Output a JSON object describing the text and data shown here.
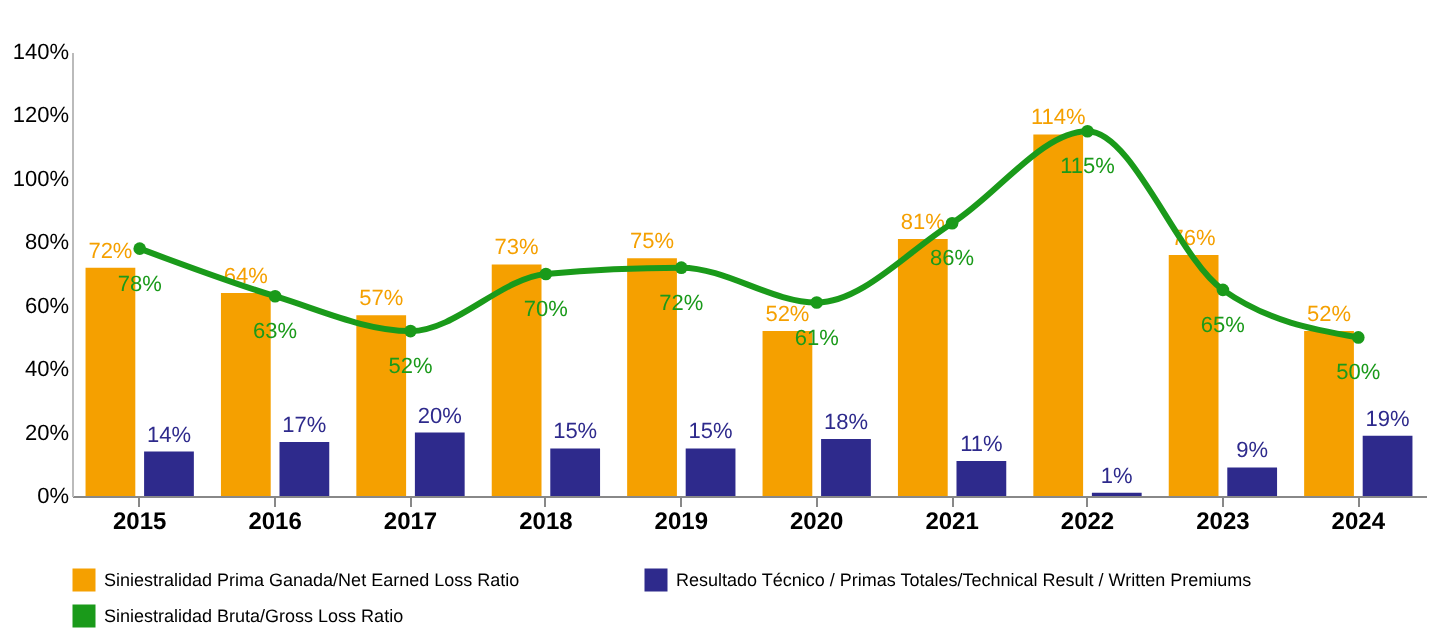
{
  "chart_data": {
    "type": "bar",
    "categories": [
      "2015",
      "2016",
      "2017",
      "2018",
      "2019",
      "2020",
      "2021",
      "2022",
      "2023",
      "2024"
    ],
    "series": [
      {
        "name": "Siniestralidad Prima Ganada/Net Earned Loss Ratio",
        "color": "#f5a000",
        "values": [
          72,
          64,
          57,
          73,
          75,
          52,
          81,
          114,
          76,
          52
        ],
        "value_labels": [
          "72%",
          "64%",
          "57%",
          "73%",
          "75%",
          "52%",
          "81%",
          "114%",
          "76%",
          "52%"
        ]
      },
      {
        "name": "Resultado Técnico / Primas Totales/Technical Result / Written Premiums",
        "color": "#2e2a8c",
        "values": [
          14,
          17,
          20,
          15,
          15,
          18,
          11,
          1,
          9,
          19
        ],
        "value_labels": [
          "14%",
          "17%",
          "20%",
          "15%",
          "15%",
          "18%",
          "11%",
          "1%",
          "9%",
          "19%"
        ]
      },
      {
        "name": "Siniestralidad Bruta/Gross Loss Ratio",
        "type": "line",
        "color": "#1a9a1a",
        "marker": "circle",
        "values": [
          78,
          63,
          52,
          70,
          72,
          61,
          86,
          115,
          65,
          50
        ],
        "value_labels": [
          "78%",
          "63%",
          "52%",
          "70%",
          "72%",
          "61%",
          "86%",
          "115%",
          "65%",
          "50%"
        ]
      }
    ],
    "ylim": [
      0,
      140
    ],
    "yticks": [
      {
        "value": 0,
        "label": "0%"
      },
      {
        "value": 20,
        "label": "20%"
      },
      {
        "value": 40,
        "label": "40%"
      },
      {
        "value": 60,
        "label": "60%"
      },
      {
        "value": 80,
        "label": "80%"
      },
      {
        "value": 100,
        "label": "100%"
      },
      {
        "value": 120,
        "label": "120%"
      },
      {
        "value": 140,
        "label": "140%"
      }
    ],
    "legend": "bottom",
    "grid": false
  }
}
